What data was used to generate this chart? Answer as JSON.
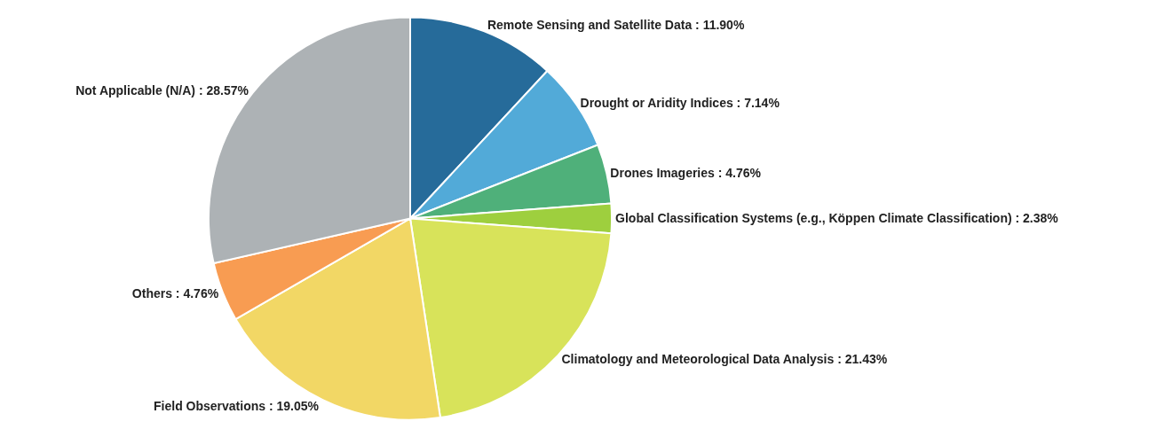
{
  "chart_data": {
    "type": "pie",
    "legend": false,
    "categories": [
      "Remote Sensing and Satellite Data",
      "Drought or Aridity Indices",
      "Drones Imageries",
      "Global Classification Systems (e.g., Köppen Climate Classification)",
      "Climatology and Meteorological Data Analysis",
      "Field Observations",
      "Others",
      "Not Applicable (N/A)"
    ],
    "values": [
      11.9,
      7.14,
      4.76,
      2.38,
      21.43,
      19.05,
      4.76,
      28.57
    ],
    "value_labels": [
      "11.90%",
      "7.14%",
      "4.76%",
      "2.38%",
      "21.43%",
      "19.05%",
      "4.76%",
      "28.57%"
    ],
    "colors": [
      "#266b9a",
      "#52aad8",
      "#4fb07a",
      "#9ecf3e",
      "#d8e35a",
      "#f2d765",
      "#f89c52",
      "#adb2b5"
    ]
  }
}
